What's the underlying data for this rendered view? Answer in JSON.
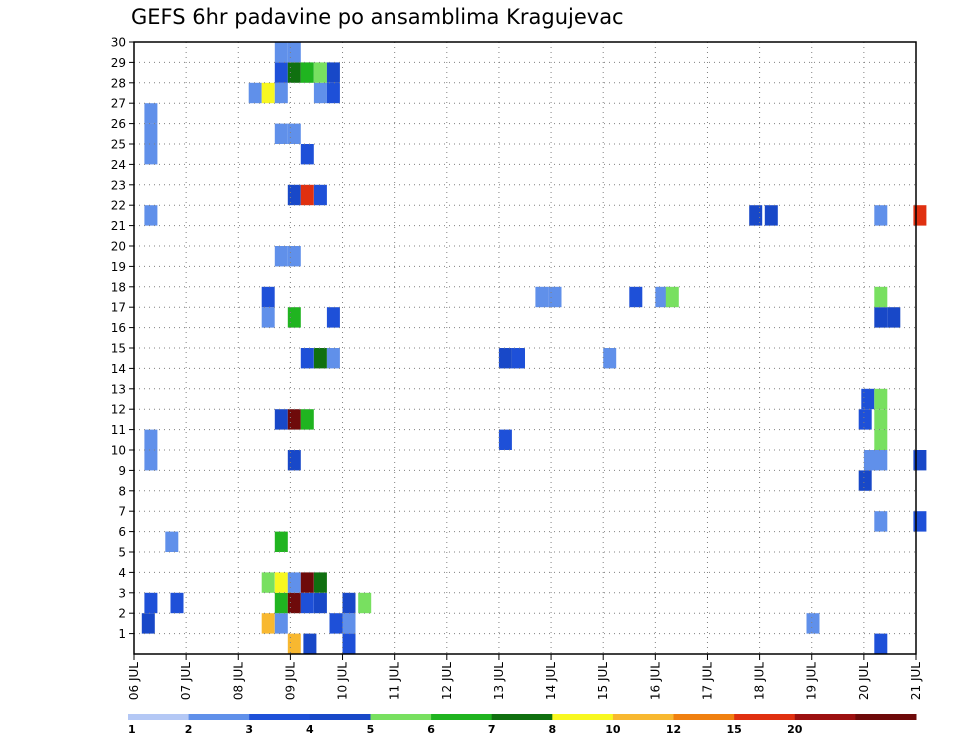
{
  "chart_data": {
    "type": "heatmap",
    "title": "GEFS 6hr padavine po ansamblima Kragujevac",
    "x_labels": [
      "06 JUL",
      "07 JUL",
      "08 JUL",
      "09 JUL",
      "10 JUL",
      "11 JUL",
      "12 JUL",
      "13 JUL",
      "14 JUL",
      "15 JUL",
      "16 JUL",
      "17 JUL",
      "18 JUL",
      "19 JUL",
      "20 JUL",
      "21 JUL"
    ],
    "y_labels": [
      "1",
      "2",
      "3",
      "4",
      "5",
      "6",
      "7",
      "8",
      "9",
      "10",
      "11",
      "12",
      "13",
      "14",
      "15",
      "16",
      "17",
      "18",
      "19",
      "20",
      "21",
      "22",
      "23",
      "24",
      "25",
      "26",
      "27",
      "28",
      "29",
      "30"
    ],
    "ylim": [
      0,
      30
    ],
    "grid": true,
    "colorbar": {
      "labels": [
        "1",
        "2",
        "3",
        "4",
        "5",
        "6",
        "7",
        "8",
        "10",
        "12",
        "15",
        "20"
      ],
      "colors": [
        "#b4c8f5",
        "#6090ea",
        "#1e50d8",
        "#1848c8",
        "#78e060",
        "#20b420",
        "#107010",
        "#f8f820",
        "#f8b830",
        "#f08010",
        "#e03010",
        "#9c1010",
        "#6e0a0a"
      ]
    },
    "cells": [
      [
        0.15,
        1,
        3
      ],
      [
        0.2,
        2,
        2
      ],
      [
        0.7,
        2,
        2
      ],
      [
        2.45,
        1,
        8
      ],
      [
        2.7,
        1,
        1
      ],
      [
        3.75,
        1,
        2
      ],
      [
        4.0,
        1,
        1
      ],
      [
        4.0,
        0,
        2
      ],
      [
        3.25,
        0,
        3
      ],
      [
        2.95,
        0,
        8
      ],
      [
        2.7,
        2,
        5
      ],
      [
        2.95,
        2,
        13
      ],
      [
        3.2,
        2,
        2
      ],
      [
        3.45,
        2,
        3
      ],
      [
        4.0,
        2,
        3
      ],
      [
        4.3,
        2,
        4
      ],
      [
        2.45,
        3,
        4
      ],
      [
        2.7,
        3,
        7
      ],
      [
        2.95,
        3,
        1
      ],
      [
        3.2,
        3,
        13
      ],
      [
        3.45,
        3,
        6
      ],
      [
        2.7,
        5,
        5
      ],
      [
        0.6,
        5,
        1
      ],
      [
        2.95,
        9,
        3
      ],
      [
        0.2,
        9,
        1
      ],
      [
        0.2,
        10,
        1
      ],
      [
        7.0,
        10,
        2
      ],
      [
        2.7,
        11,
        3
      ],
      [
        2.95,
        11,
        13
      ],
      [
        3.2,
        11,
        5
      ],
      [
        3.2,
        14,
        2
      ],
      [
        3.45,
        14,
        6
      ],
      [
        3.7,
        14,
        1
      ],
      [
        7.0,
        14,
        3
      ],
      [
        7.25,
        14,
        2
      ],
      [
        9.0,
        14,
        1
      ],
      [
        2.45,
        16,
        1
      ],
      [
        2.95,
        16,
        5
      ],
      [
        3.7,
        16,
        2
      ],
      [
        2.45,
        17,
        2
      ],
      [
        7.7,
        17,
        1
      ],
      [
        7.95,
        17,
        1
      ],
      [
        9.5,
        17,
        2
      ],
      [
        10.0,
        17,
        1
      ],
      [
        10.2,
        17,
        4
      ],
      [
        14.2,
        16,
        3
      ],
      [
        14.45,
        16,
        3
      ],
      [
        14.2,
        17,
        4
      ],
      [
        2.7,
        19,
        1
      ],
      [
        2.95,
        19,
        1
      ],
      [
        0.2,
        21,
        1
      ],
      [
        11.8,
        21,
        3
      ],
      [
        12.1,
        21,
        3
      ],
      [
        14.2,
        21,
        1
      ],
      [
        14.95,
        21,
        10
      ],
      [
        2.95,
        22,
        3
      ],
      [
        3.2,
        22,
        10
      ],
      [
        3.45,
        22,
        2
      ],
      [
        3.2,
        24,
        2
      ],
      [
        2.7,
        25,
        1
      ],
      [
        2.95,
        25,
        1
      ],
      [
        0.2,
        24,
        1
      ],
      [
        0.2,
        25,
        1
      ],
      [
        0.2,
        26,
        1
      ],
      [
        2.2,
        27,
        1
      ],
      [
        2.45,
        27,
        7
      ],
      [
        2.7,
        27,
        1
      ],
      [
        3.45,
        27,
        1
      ],
      [
        3.7,
        27,
        2
      ],
      [
        2.7,
        28,
        2
      ],
      [
        2.95,
        28,
        6
      ],
      [
        3.2,
        28,
        5
      ],
      [
        3.45,
        28,
        4
      ],
      [
        3.7,
        28,
        3
      ],
      [
        2.7,
        29,
        1
      ],
      [
        2.95,
        29,
        1
      ],
      [
        12.9,
        1,
        1
      ],
      [
        13.9,
        11,
        2
      ],
      [
        14.2,
        11,
        4
      ],
      [
        14.2,
        10,
        4
      ],
      [
        13.95,
        12,
        2
      ],
      [
        14.2,
        12,
        4
      ],
      [
        14.0,
        9,
        1
      ],
      [
        14.2,
        9,
        1
      ],
      [
        13.9,
        8,
        3
      ],
      [
        14.2,
        6,
        1
      ],
      [
        14.95,
        6,
        2
      ],
      [
        14.95,
        9,
        3
      ],
      [
        14.2,
        0,
        2
      ]
    ]
  }
}
